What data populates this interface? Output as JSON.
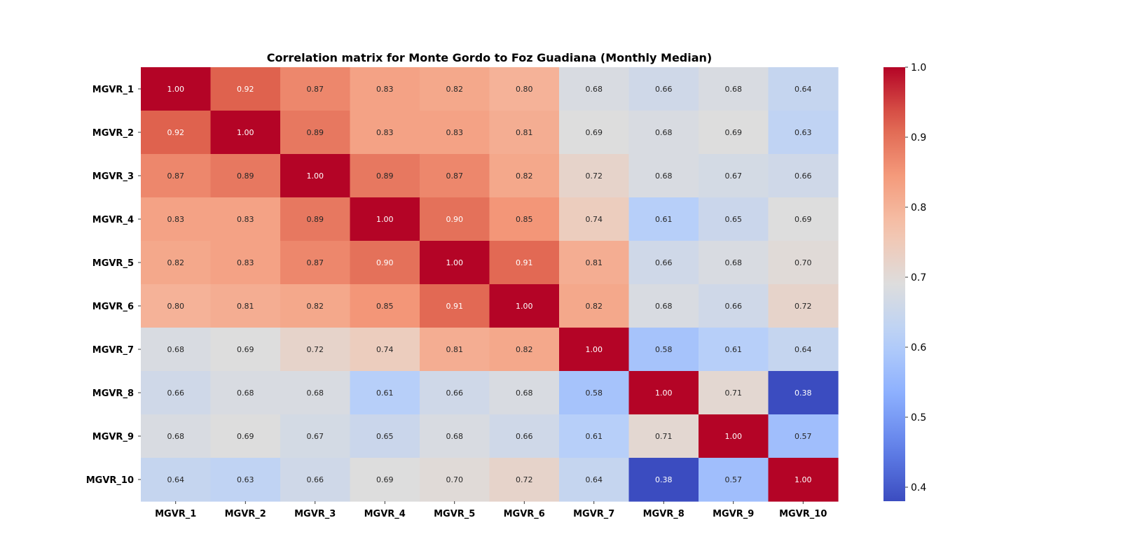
{
  "chart_data": {
    "type": "heatmap",
    "title": "Correlation matrix for Monte Gordo to Foz Guadiana (Monthly Median)",
    "row_labels": [
      "MGVR_1",
      "MGVR_2",
      "MGVR_3",
      "MGVR_4",
      "MGVR_5",
      "MGVR_6",
      "MGVR_7",
      "MGVR_8",
      "MGVR_9",
      "MGVR_10"
    ],
    "col_labels": [
      "MGVR_1",
      "MGVR_2",
      "MGVR_3",
      "MGVR_4",
      "MGVR_5",
      "MGVR_6",
      "MGVR_7",
      "MGVR_8",
      "MGVR_9",
      "MGVR_10"
    ],
    "values": [
      [
        1.0,
        0.92,
        0.87,
        0.83,
        0.82,
        0.8,
        0.68,
        0.66,
        0.68,
        0.64
      ],
      [
        0.92,
        1.0,
        0.89,
        0.83,
        0.83,
        0.81,
        0.69,
        0.68,
        0.69,
        0.63
      ],
      [
        0.87,
        0.89,
        1.0,
        0.89,
        0.87,
        0.82,
        0.72,
        0.68,
        0.67,
        0.66
      ],
      [
        0.83,
        0.83,
        0.89,
        1.0,
        0.9,
        0.85,
        0.74,
        0.61,
        0.65,
        0.69
      ],
      [
        0.82,
        0.83,
        0.87,
        0.9,
        1.0,
        0.91,
        0.81,
        0.66,
        0.68,
        0.7
      ],
      [
        0.8,
        0.81,
        0.82,
        0.85,
        0.91,
        1.0,
        0.82,
        0.68,
        0.66,
        0.72
      ],
      [
        0.68,
        0.69,
        0.72,
        0.74,
        0.81,
        0.82,
        1.0,
        0.58,
        0.61,
        0.64
      ],
      [
        0.66,
        0.68,
        0.68,
        0.61,
        0.66,
        0.68,
        0.58,
        1.0,
        0.71,
        0.38
      ],
      [
        0.68,
        0.69,
        0.67,
        0.65,
        0.68,
        0.66,
        0.61,
        0.71,
        1.0,
        0.57
      ],
      [
        0.64,
        0.63,
        0.66,
        0.69,
        0.7,
        0.72,
        0.64,
        0.38,
        0.57,
        1.0
      ]
    ],
    "value_format": "2 decimals",
    "colormap": "coolwarm",
    "color_range": [
      0.38,
      1.0
    ],
    "colorbar_ticks": [
      "0.4",
      "0.5",
      "0.6",
      "0.7",
      "0.8",
      "0.9",
      "1.0"
    ],
    "colorbar_tick_values": [
      0.4,
      0.5,
      0.6,
      0.7,
      0.8,
      0.9,
      1.0
    ],
    "colorbar_placement": "right"
  }
}
